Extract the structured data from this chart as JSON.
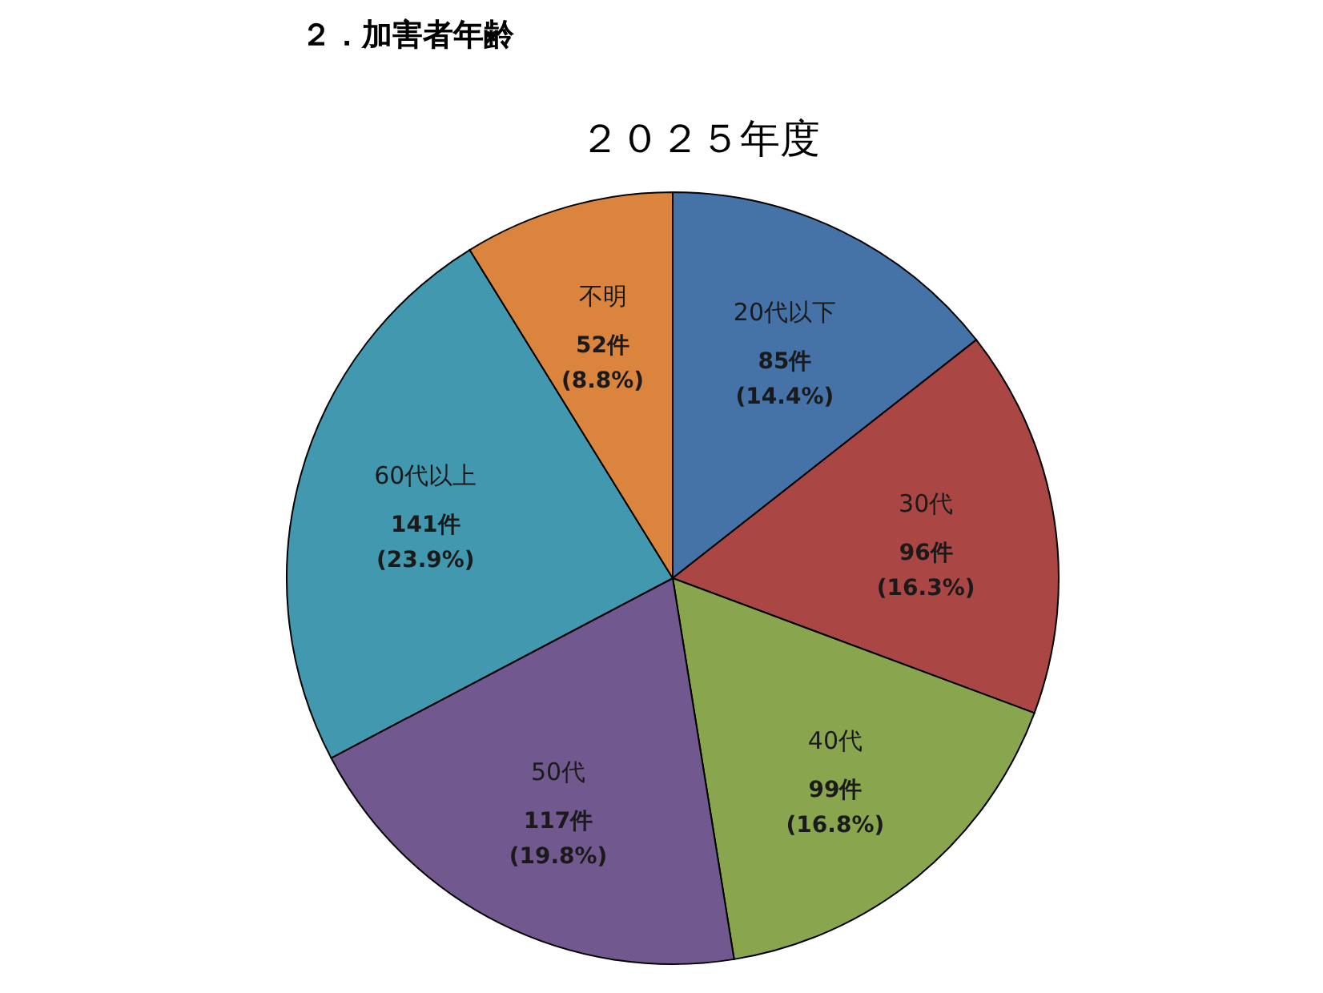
{
  "chart_data": {
    "type": "pie",
    "title": "２．加害者年齢",
    "subtitle": "２０２５年度",
    "categories": [
      "20代以下",
      "30代",
      "40代",
      "50代",
      "60代以上",
      "不明"
    ],
    "values": [
      85,
      96,
      99,
      117,
      141,
      52
    ],
    "colors": [
      "#4572a7",
      "#aa4643",
      "#89a54e",
      "#71588f",
      "#4198af",
      "#db843d"
    ],
    "value_labels": [
      "85件\n(14.4%)",
      "96件\n(16.3%)",
      "99件\n(16.8%)",
      "117件\n(19.8%)",
      "141件\n(23.9%)",
      "52件\n(8.8%)"
    ]
  }
}
